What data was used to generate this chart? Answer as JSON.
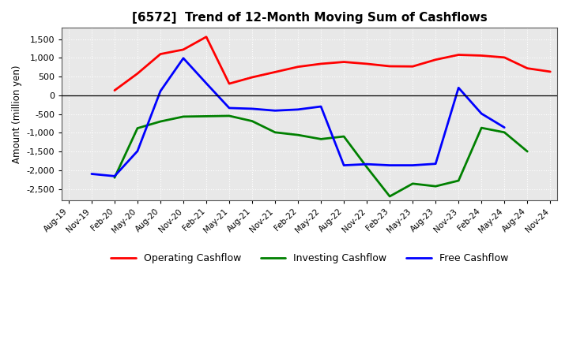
{
  "title": "[6572]  Trend of 12-Month Moving Sum of Cashflows",
  "ylabel": "Amount (million yen)",
  "background_color": "#ffffff",
  "plot_bg_color": "#e8e8e8",
  "grid_color": "#ffffff",
  "x_labels": [
    "Aug-19",
    "Nov-19",
    "Feb-20",
    "May-20",
    "Aug-20",
    "Nov-20",
    "Feb-21",
    "May-21",
    "Aug-21",
    "Nov-21",
    "Feb-22",
    "May-22",
    "Aug-22",
    "Nov-22",
    "Feb-23",
    "May-23",
    "Aug-23",
    "Nov-23",
    "Feb-24",
    "May-24",
    "Aug-24",
    "Nov-24"
  ],
  "operating": [
    null,
    null,
    130,
    580,
    1100,
    1220,
    1560,
    310,
    480,
    620,
    760,
    840,
    890,
    840,
    775,
    770,
    950,
    1080,
    1060,
    1010,
    720,
    630
  ],
  "investing": [
    null,
    null,
    -2200,
    -880,
    -700,
    -570,
    -560,
    -550,
    -690,
    -990,
    -1060,
    -1170,
    -1100,
    -1920,
    -2700,
    -2360,
    -2430,
    -2280,
    -870,
    -990,
    -1500,
    null
  ],
  "free": [
    null,
    -2100,
    -2160,
    -1490,
    110,
    990,
    320,
    -340,
    -360,
    -410,
    -380,
    -300,
    -1870,
    -1840,
    -1870,
    -1870,
    -1830,
    200,
    -490,
    -860,
    null,
    null
  ],
  "ylim": [
    -2800,
    1800
  ],
  "yticks": [
    -2500,
    -2000,
    -1500,
    -1000,
    -500,
    0,
    500,
    1000,
    1500
  ],
  "line_colors": {
    "operating": "#ff0000",
    "investing": "#008000",
    "free": "#0000ff"
  },
  "line_width": 2.0
}
